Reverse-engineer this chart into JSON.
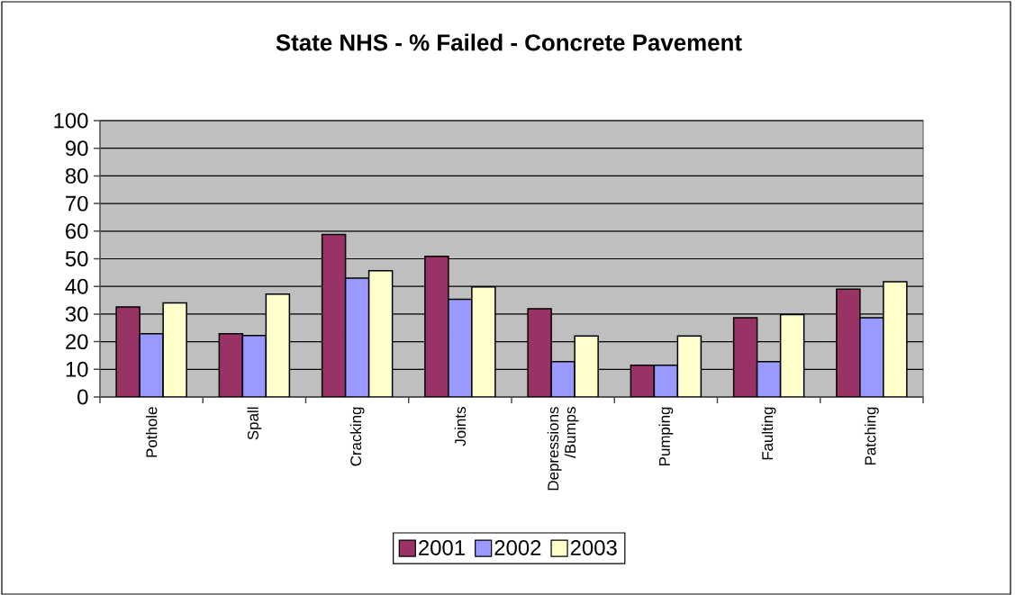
{
  "chart_data": {
    "type": "bar",
    "title": "State NHS - % Failed - Concrete Pavement",
    "categories": [
      "Pothole",
      "Spall",
      "Cracking",
      "Joints",
      "Depressions /Bumps",
      "Pumping",
      "Faulting",
      "Patching"
    ],
    "series": [
      {
        "name": "2001",
        "color": "#993366",
        "values": [
          32.6,
          22.9,
          58.8,
          50.9,
          31.9,
          11.5,
          28.7,
          39.0
        ]
      },
      {
        "name": "2002",
        "color": "#9999ff",
        "values": [
          22.9,
          22.2,
          43.0,
          35.3,
          12.8,
          11.5,
          12.8,
          28.7
        ]
      },
      {
        "name": "2003",
        "color": "#ffffcc",
        "values": [
          34.0,
          37.2,
          45.7,
          39.8,
          22.1,
          22.1,
          29.8,
          41.7
        ]
      }
    ],
    "ylim": [
      0,
      100
    ],
    "yticks": [
      0,
      10,
      20,
      30,
      40,
      50,
      60,
      70,
      80,
      90,
      100
    ],
    "grid": "y",
    "legend": "bottom"
  }
}
